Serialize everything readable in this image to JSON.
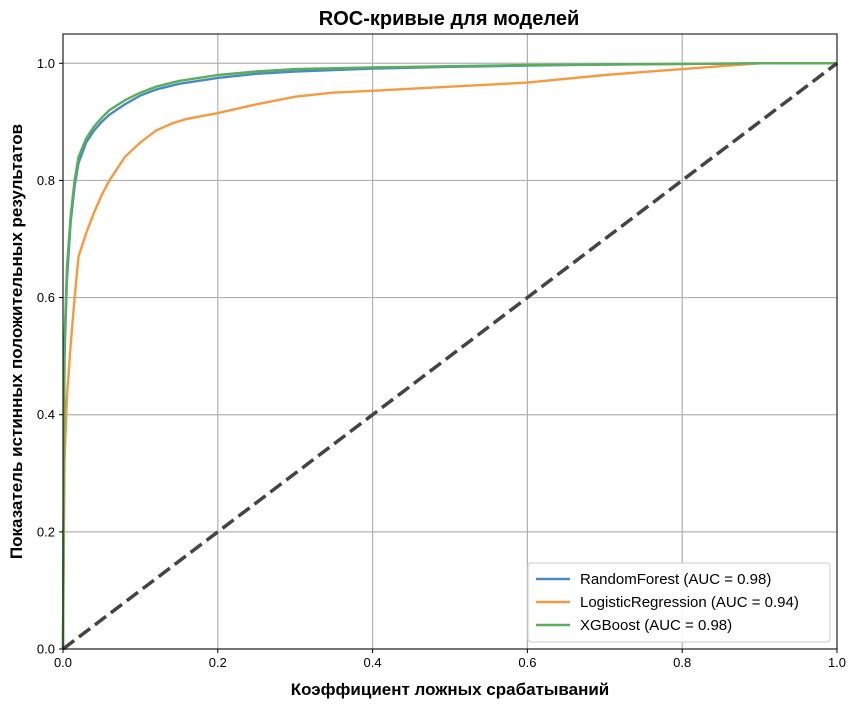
{
  "chart_data": {
    "type": "line",
    "title": "ROC-кривые для моделей",
    "xlabel": "Коэффициент ложных срабатываний",
    "ylabel": "Показатель истинных положительных результатов",
    "xlim": [
      0,
      1
    ],
    "ylim": [
      0,
      1.05
    ],
    "xticks": [
      "0.0",
      "0.2",
      "0.4",
      "0.6",
      "0.8",
      "1.0"
    ],
    "yticks": [
      "0.0",
      "0.2",
      "0.4",
      "0.6",
      "0.8",
      "1.0"
    ],
    "grid": true,
    "legend_position": "bottom-right",
    "series": [
      {
        "name": "RandomForest (AUC = 0.98)",
        "color": "#4a8bbf",
        "x": [
          0,
          0.002,
          0.005,
          0.01,
          0.015,
          0.02,
          0.03,
          0.04,
          0.05,
          0.06,
          0.08,
          0.1,
          0.12,
          0.15,
          0.2,
          0.25,
          0.3,
          0.4,
          0.5,
          0.6,
          0.7,
          0.8,
          0.9,
          1.0
        ],
        "y": [
          0,
          0.5,
          0.63,
          0.73,
          0.79,
          0.83,
          0.865,
          0.885,
          0.9,
          0.912,
          0.93,
          0.945,
          0.955,
          0.965,
          0.975,
          0.982,
          0.986,
          0.991,
          0.994,
          0.996,
          0.998,
          0.999,
          1.0,
          1.0
        ]
      },
      {
        "name": "LogisticRegression (AUC = 0.94)",
        "color": "#f7993f",
        "x": [
          0,
          0.002,
          0.005,
          0.01,
          0.015,
          0.02,
          0.03,
          0.04,
          0.05,
          0.06,
          0.08,
          0.1,
          0.12,
          0.14,
          0.16,
          0.2,
          0.25,
          0.3,
          0.35,
          0.4,
          0.5,
          0.6,
          0.7,
          0.8,
          0.85,
          0.9,
          1.0
        ],
        "y": [
          0,
          0.32,
          0.43,
          0.52,
          0.6,
          0.67,
          0.71,
          0.745,
          0.775,
          0.8,
          0.84,
          0.865,
          0.885,
          0.897,
          0.905,
          0.915,
          0.93,
          0.943,
          0.95,
          0.953,
          0.96,
          0.967,
          0.98,
          0.99,
          0.995,
          1.0,
          1.0
        ]
      },
      {
        "name": "XGBoost (AUC = 0.98)",
        "color": "#5aae5a",
        "x": [
          0,
          0.002,
          0.005,
          0.01,
          0.015,
          0.02,
          0.03,
          0.04,
          0.05,
          0.06,
          0.08,
          0.1,
          0.12,
          0.15,
          0.2,
          0.25,
          0.3,
          0.4,
          0.5,
          0.6,
          0.7,
          0.8,
          0.9,
          1.0
        ],
        "y": [
          0,
          0.52,
          0.65,
          0.74,
          0.8,
          0.84,
          0.872,
          0.892,
          0.907,
          0.92,
          0.937,
          0.95,
          0.96,
          0.97,
          0.98,
          0.986,
          0.99,
          0.993,
          0.995,
          0.997,
          0.998,
          0.999,
          1.0,
          1.0
        ]
      }
    ],
    "reference_line": {
      "x": [
        0,
        1
      ],
      "y": [
        0,
        1
      ],
      "color": "#444444",
      "style": "dashed"
    }
  }
}
